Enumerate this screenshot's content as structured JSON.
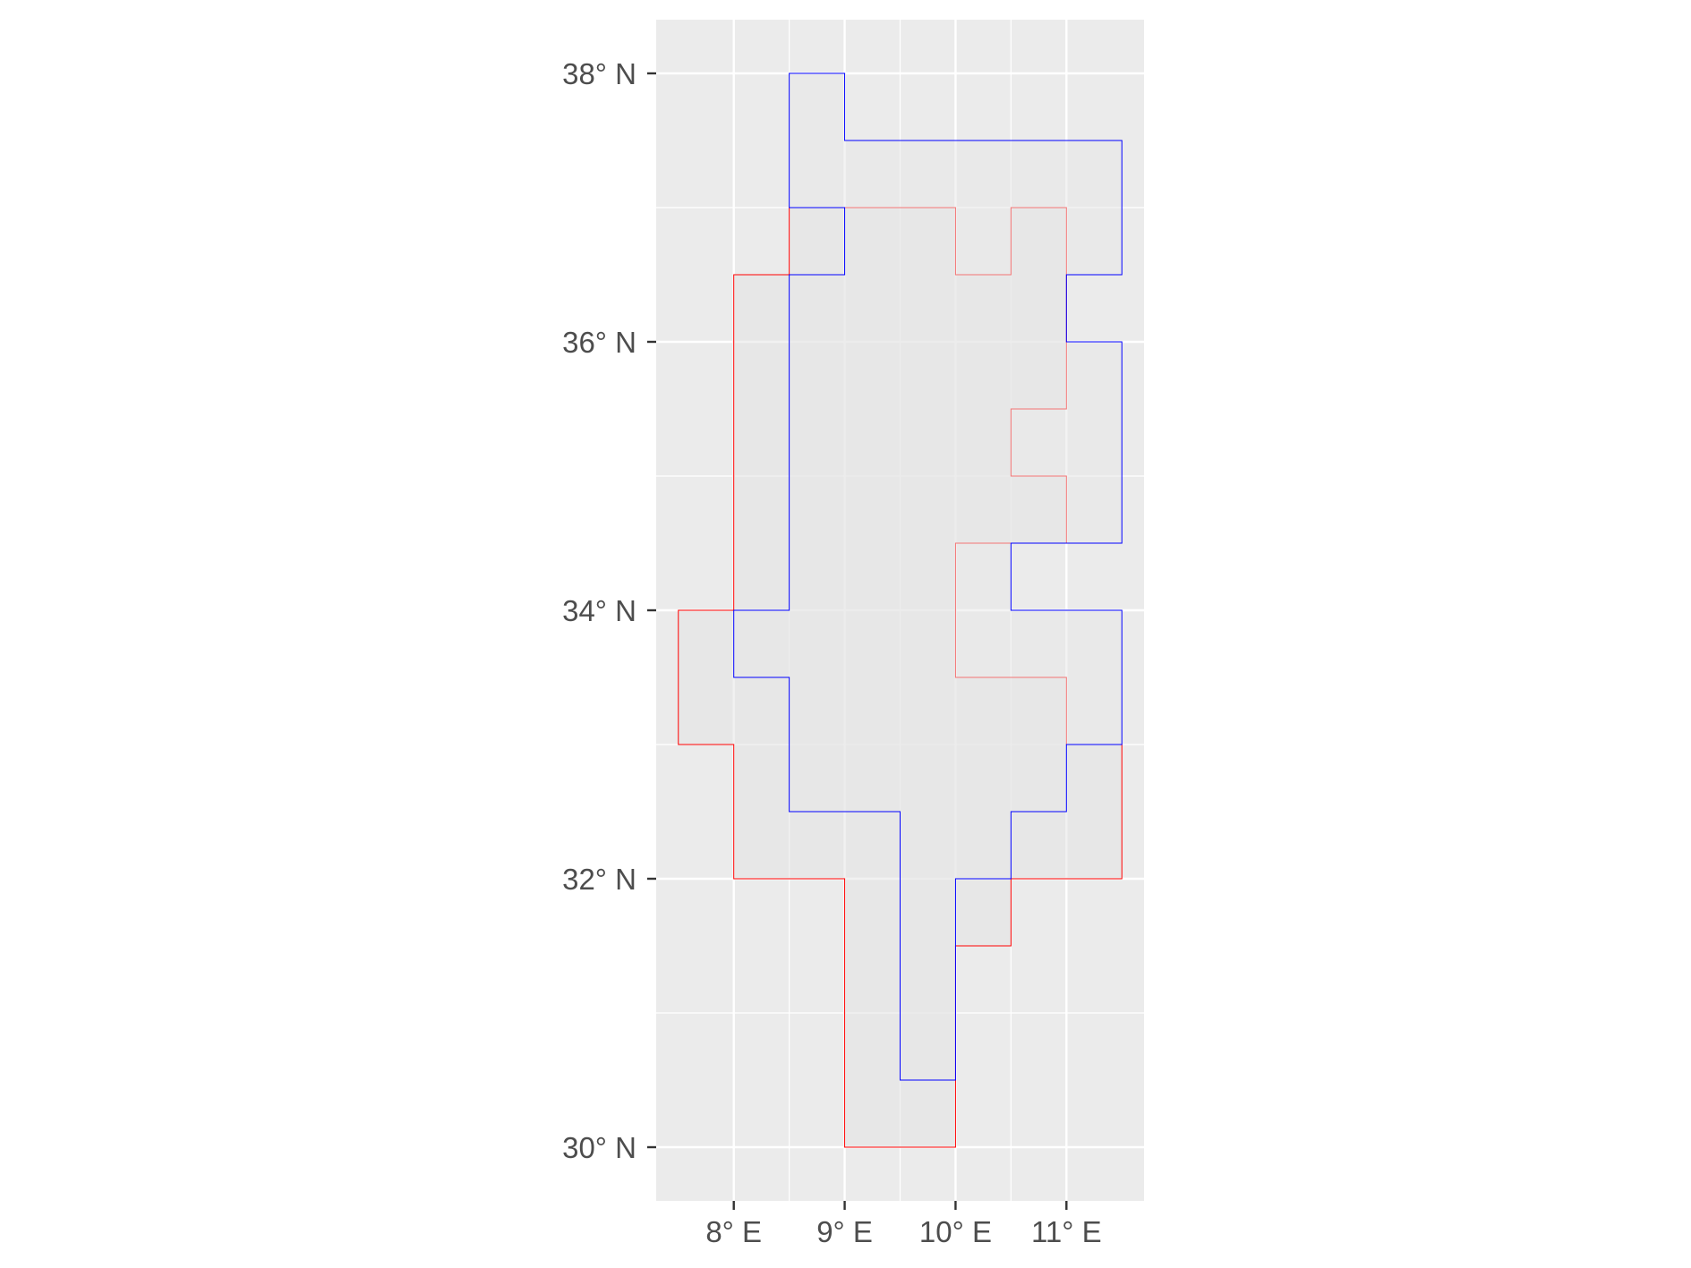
{
  "chart_data": {
    "type": "map",
    "title": "",
    "xlabel": "",
    "ylabel": "",
    "xlim": [
      7.3,
      11.7
    ],
    "ylim": [
      29.6,
      38.4
    ],
    "grid": true,
    "legend": "none",
    "panel_background": "#ebebeb",
    "gridline_color": "#ffffff",
    "x_ticks": [
      {
        "value": 8,
        "label": "8° E"
      },
      {
        "value": 9,
        "label": "9° E"
      },
      {
        "value": 10,
        "label": "10° E"
      },
      {
        "value": 11,
        "label": "11° E"
      }
    ],
    "y_ticks": [
      {
        "value": 30,
        "label": "30° N"
      },
      {
        "value": 32,
        "label": "32° N"
      },
      {
        "value": 34,
        "label": "34° N"
      },
      {
        "value": 36,
        "label": "36° N"
      },
      {
        "value": 38,
        "label": "38° N"
      }
    ],
    "series": [
      {
        "color": "#ff0000",
        "fill": "#e3e3e3",
        "polygon": [
          [
            8.5,
            37.0
          ],
          [
            10.0,
            37.0
          ],
          [
            10.0,
            36.5
          ],
          [
            10.5,
            36.5
          ],
          [
            10.5,
            37.0
          ],
          [
            11.0,
            37.0
          ],
          [
            11.0,
            35.5
          ],
          [
            10.5,
            35.5
          ],
          [
            10.5,
            35.0
          ],
          [
            11.0,
            35.0
          ],
          [
            11.0,
            34.5
          ],
          [
            10.0,
            34.5
          ],
          [
            10.0,
            33.5
          ],
          [
            11.0,
            33.5
          ],
          [
            11.0,
            33.0
          ],
          [
            11.5,
            33.0
          ],
          [
            11.5,
            32.0
          ],
          [
            10.5,
            32.0
          ],
          [
            10.5,
            31.5
          ],
          [
            10.0,
            31.5
          ],
          [
            10.0,
            30.0
          ],
          [
            9.0,
            30.0
          ],
          [
            9.0,
            32.0
          ],
          [
            8.0,
            32.0
          ],
          [
            8.0,
            33.0
          ],
          [
            7.5,
            33.0
          ],
          [
            7.5,
            34.0
          ],
          [
            8.0,
            34.0
          ],
          [
            8.0,
            36.5
          ],
          [
            8.5,
            36.5
          ]
        ]
      },
      {
        "color": "#0000ff",
        "fill": "#e8e8e8",
        "polygon": [
          [
            8.5,
            38.0
          ],
          [
            9.0,
            38.0
          ],
          [
            9.0,
            37.5
          ],
          [
            11.5,
            37.5
          ],
          [
            11.5,
            36.5
          ],
          [
            11.0,
            36.5
          ],
          [
            11.0,
            36.0
          ],
          [
            11.5,
            36.0
          ],
          [
            11.5,
            34.5
          ],
          [
            10.5,
            34.5
          ],
          [
            10.5,
            34.0
          ],
          [
            11.5,
            34.0
          ],
          [
            11.5,
            33.0
          ],
          [
            11.0,
            33.0
          ],
          [
            11.0,
            32.5
          ],
          [
            10.5,
            32.5
          ],
          [
            10.5,
            32.0
          ],
          [
            10.0,
            32.0
          ],
          [
            10.0,
            30.5
          ],
          [
            9.5,
            30.5
          ],
          [
            9.5,
            32.5
          ],
          [
            8.5,
            32.5
          ],
          [
            8.5,
            33.5
          ],
          [
            8.0,
            33.5
          ],
          [
            8.0,
            34.0
          ],
          [
            8.5,
            34.0
          ],
          [
            8.5,
            36.5
          ],
          [
            9.0,
            36.5
          ],
          [
            9.0,
            37.0
          ],
          [
            8.5,
            37.0
          ]
        ]
      }
    ]
  }
}
